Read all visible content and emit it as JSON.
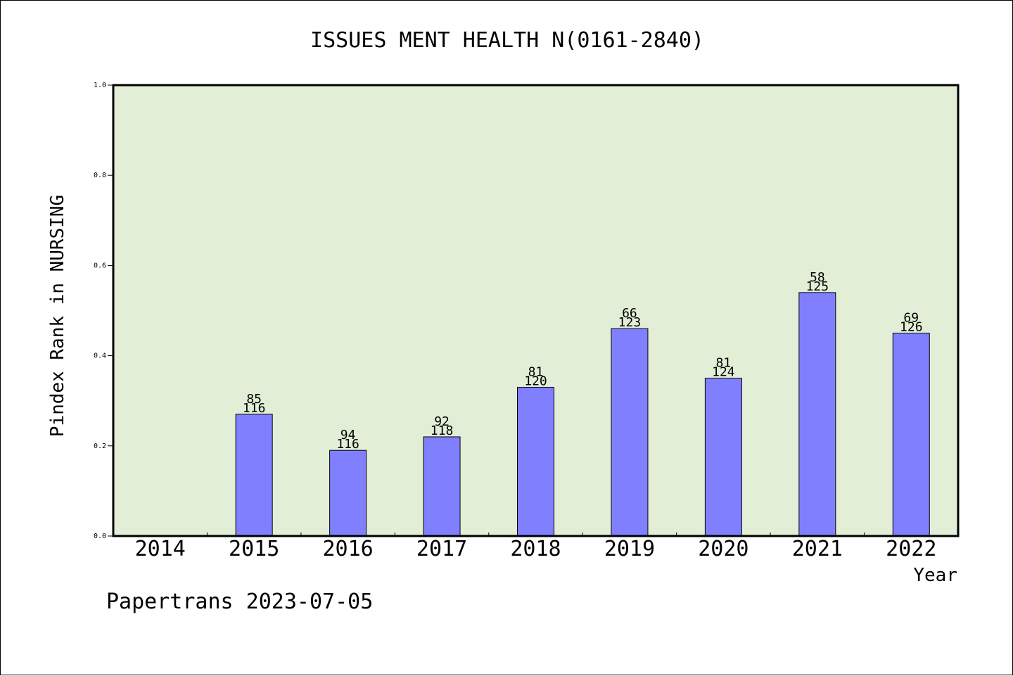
{
  "chart_data": {
    "type": "bar",
    "title": "ISSUES MENT HEALTH N(0161-2840)",
    "xlabel": "Year",
    "ylabel": "Pindex Rank in NURSING",
    "ylim": [
      0.0,
      1.0
    ],
    "yticks": [
      "0.0",
      "0.2",
      "0.4",
      "0.6",
      "0.8",
      "1.0"
    ],
    "categories": [
      "2014",
      "2015",
      "2016",
      "2017",
      "2018",
      "2019",
      "2020",
      "2021",
      "2022"
    ],
    "values": [
      null,
      0.27,
      0.19,
      0.22,
      0.33,
      0.46,
      0.35,
      0.54,
      0.45
    ],
    "label_top": [
      "",
      "85",
      "94",
      "92",
      "81",
      "66",
      "81",
      "58",
      "69"
    ],
    "label_bottom": [
      "",
      "116",
      "116",
      "118",
      "120",
      "123",
      "124",
      "125",
      "126"
    ],
    "legend": "none",
    "grid": false
  },
  "footer": {
    "credit": "Papertrans 2023-07-05"
  },
  "colors": {
    "plot_background": "#e2efd6",
    "bar_fill": "#8080ff",
    "bar_stroke": "#000000"
  }
}
